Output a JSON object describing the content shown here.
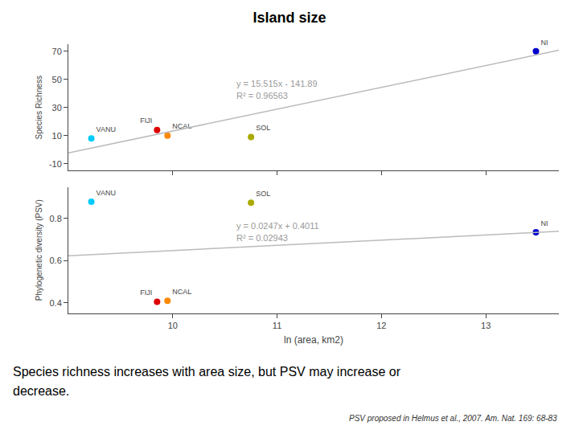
{
  "chart_data": [
    {
      "type": "scatter",
      "title": "Island size",
      "ylabel": "Species Richness",
      "xlim": [
        9.0,
        13.7
      ],
      "xticks": [
        10,
        11,
        12,
        13
      ],
      "ylim": [
        -15,
        75
      ],
      "yticks": [
        -10,
        10,
        30,
        50,
        70
      ],
      "grid": false,
      "tick_labels": "y",
      "series": [
        {
          "type": "scatter",
          "x": [
            9.22,
            9.85,
            9.95,
            10.75,
            13.48
          ],
          "values": [
            8,
            14,
            10,
            9,
            70
          ],
          "colors": [
            "#00CCFF",
            "#DD0000",
            "#FF8800",
            "#AAAA00",
            "#0000CC"
          ],
          "labels": [
            "VANU",
            "FIJI",
            "NCAL",
            "SOL",
            "NI"
          ]
        },
        {
          "type": "line",
          "x": [
            9.0,
            13.7
          ],
          "values": [
            -2.255,
            70.6655
          ],
          "color": "#BBBBBB"
        }
      ],
      "annotations": [
        "y = 15.515x - 141.89",
        "R² = 0.96563"
      ]
    },
    {
      "type": "scatter",
      "xlabel": "ln (area, km2)",
      "ylabel": "Phylogenetic diversity (PSV)",
      "xlim": [
        9.0,
        13.7
      ],
      "xticks": [
        10,
        11,
        12,
        13
      ],
      "ylim": [
        0.35,
        0.95
      ],
      "yticks": [
        0.4,
        0.6,
        0.8
      ],
      "grid": false,
      "series": [
        {
          "type": "scatter",
          "x": [
            9.22,
            9.85,
            9.95,
            10.75,
            13.48
          ],
          "values": [
            0.88,
            0.405,
            0.41,
            0.875,
            0.735
          ],
          "colors": [
            "#00CCFF",
            "#DD0000",
            "#FF8800",
            "#AAAA00",
            "#0000CC"
          ],
          "labels": [
            "VANU",
            "FIJI",
            "NCAL",
            "SOL",
            "NI"
          ]
        },
        {
          "type": "line",
          "x": [
            9.0,
            13.7
          ],
          "values": [
            0.6234,
            0.73949
          ],
          "color": "#BBBBBB"
        }
      ],
      "annotations": [
        "y = 0.0247x + 0.4011",
        "R² = 0.02943"
      ],
      "notes": [
        "Species richness increases with area size, but PSV may increase or",
        "decrease."
      ],
      "citation": "PSV proposed in Helmus et al., 2007. Am. Nat. 169: 68-83"
    }
  ]
}
